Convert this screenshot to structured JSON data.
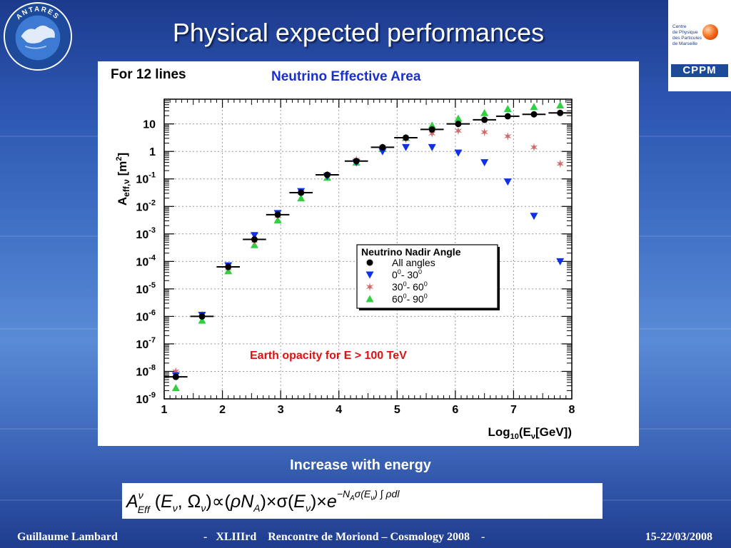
{
  "slide": {
    "title": "Physical expected performances",
    "caption": "Increase with energy",
    "logo_left": "ANTARES",
    "logo_right": {
      "lines": "Centre\nde Physique\ndes Particules\nde Marseille",
      "acronym": "CPPM"
    }
  },
  "footer": {
    "author": "Guillaume Lambard",
    "event": "-   XLIIIrd    Rencontre de Moriond – Cosmology 2008    -",
    "date": "15-22/03/2008"
  },
  "formula": {
    "text": "A^ν_Eff(E_ν, Ω_ν) ∝ (ρN_A) × σ(E_ν) × e^(−N_A σ(E_ν) ∫ρdl)"
  },
  "chart_data": {
    "type": "scatter",
    "title": "Neutrino Effective Area",
    "subtitle": "For 12 lines",
    "xlabel": "Log10(Eν[GeV])",
    "ylabel": "Aeff,ν [m2]",
    "x_ticks": [
      "1",
      "2",
      "3",
      "4",
      "5",
      "6",
      "7",
      "8"
    ],
    "y_ticks": [
      "10-9",
      "10-8",
      "10-7",
      "10-6",
      "10-5",
      "10-4",
      "10-3",
      "10-2",
      "10-1",
      "1",
      "10"
    ],
    "xlim": [
      1,
      8
    ],
    "ylim_log10": [
      -9,
      1.9
    ],
    "scale_y": "log",
    "grid": true,
    "legend_title": "Neutrino Nadir Angle",
    "legend_position": "center-right",
    "annotation": "Earth opacity for E > 100 TeV",
    "colors": {
      "all": "#000000",
      "a0_30": "#1030e8",
      "a30_60": "#d06a6a",
      "a60_90": "#30d040",
      "title": "#1a2fd0",
      "annotation": "#e01010"
    },
    "series": [
      {
        "name": "All angles",
        "marker": "circle",
        "x": [
          1.2,
          1.65,
          2.1,
          2.55,
          2.95,
          3.35,
          3.8,
          4.3,
          4.75,
          5.15,
          5.6,
          6.05,
          6.5,
          6.9,
          7.35,
          7.8
        ],
        "log10_y": [
          -8.2,
          -6.0,
          -4.2,
          -3.2,
          -2.3,
          -1.5,
          -0.85,
          -0.35,
          0.15,
          0.5,
          0.8,
          1.0,
          1.15,
          1.28,
          1.35,
          1.4
        ]
      },
      {
        "name": "00- 300",
        "marker": "triangle-down",
        "x": [
          1.2,
          1.65,
          2.1,
          2.55,
          2.95,
          3.35,
          3.8,
          4.3,
          4.75,
          5.15,
          5.6,
          6.05,
          6.5,
          6.9,
          7.35,
          7.8
        ],
        "log10_y": [
          -8.15,
          -5.95,
          -4.15,
          -3.05,
          -2.25,
          -1.45,
          -0.9,
          -0.4,
          0.0,
          0.15,
          0.15,
          -0.05,
          -0.4,
          -1.1,
          -2.35,
          -4.0
        ]
      },
      {
        "name": "300- 600",
        "marker": "star",
        "x": [
          1.2,
          1.65,
          2.1,
          2.55,
          2.95,
          3.35,
          3.8,
          4.3,
          4.75,
          5.15,
          5.6,
          6.05,
          6.5,
          6.9,
          7.35,
          7.8
        ],
        "log10_y": [
          -8.0,
          -5.95,
          -4.25,
          -3.25,
          -2.35,
          -1.5,
          -0.85,
          -0.3,
          0.15,
          0.45,
          0.65,
          0.75,
          0.7,
          0.55,
          0.15,
          -0.45
        ]
      },
      {
        "name": "600- 900",
        "marker": "triangle-up",
        "x": [
          1.2,
          1.65,
          2.1,
          2.55,
          2.95,
          3.35,
          3.8,
          4.3,
          4.75,
          5.15,
          5.6,
          6.05,
          6.5,
          6.9,
          7.35,
          7.8
        ],
        "log10_y": [
          -8.6,
          -6.15,
          -4.35,
          -3.4,
          -2.5,
          -1.7,
          -0.95,
          -0.4,
          0.1,
          0.5,
          0.95,
          1.2,
          1.4,
          1.55,
          1.62,
          1.68
        ]
      }
    ]
  }
}
